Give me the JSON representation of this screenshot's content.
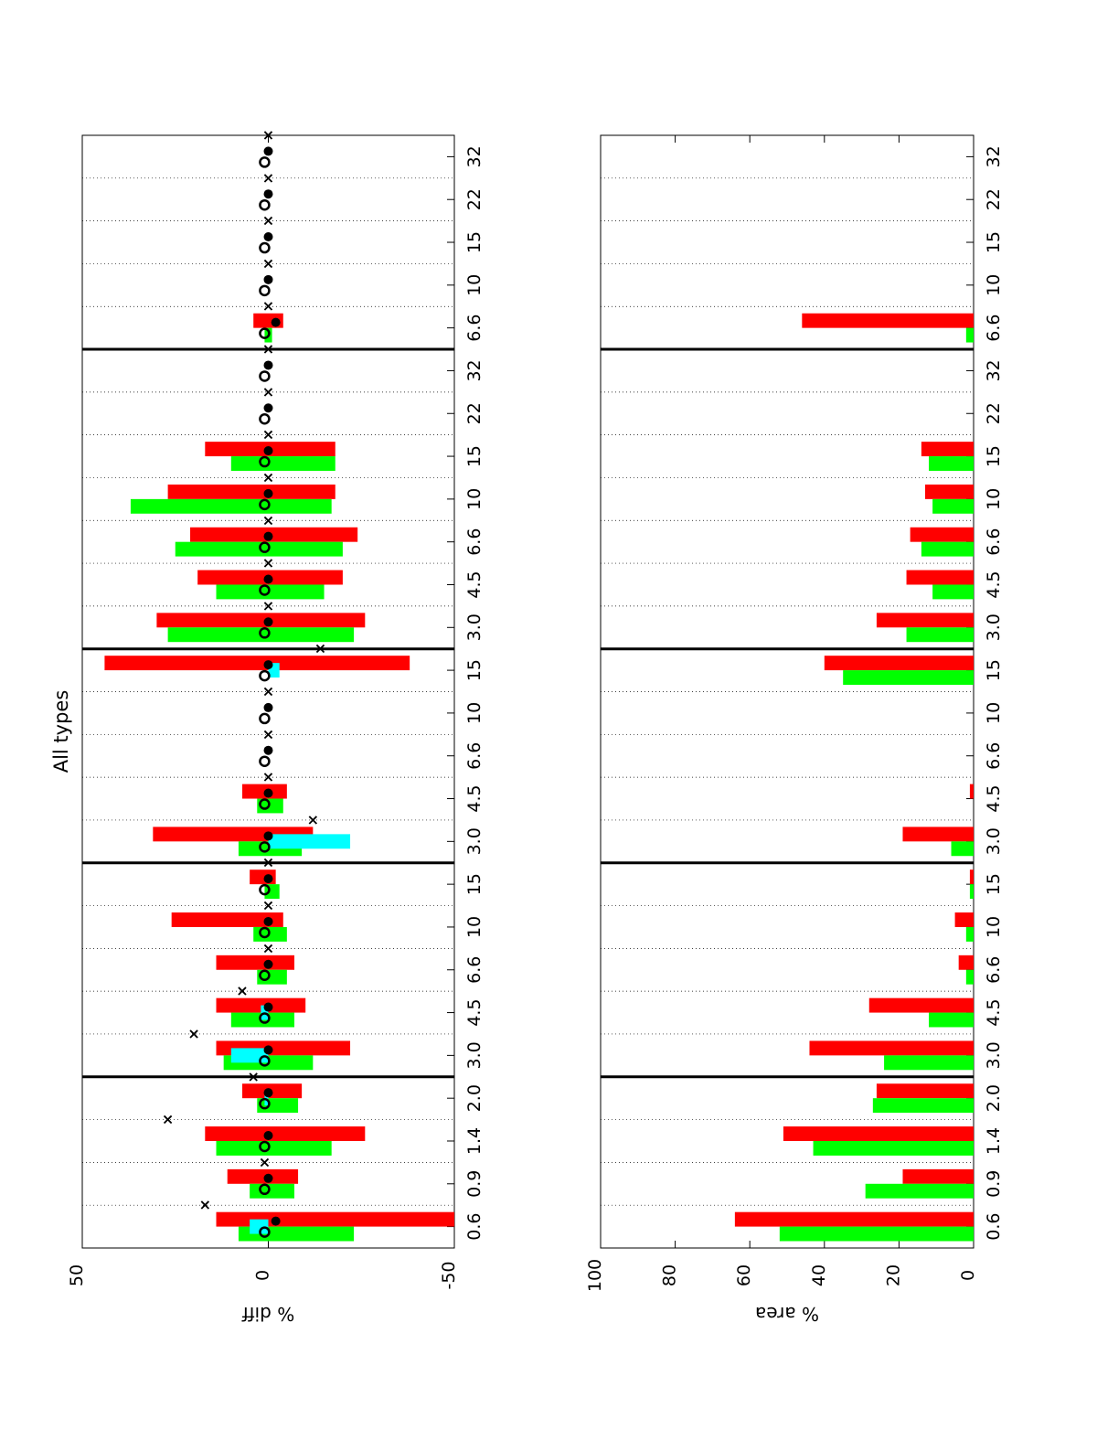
{
  "figure": {
    "title": "All types",
    "colors": {
      "red": "#ff0000",
      "green": "#00ff00",
      "cyan": "#00ffff",
      "marker": "#000000"
    }
  },
  "chart_data": [
    {
      "type": "bar",
      "panel": "top",
      "ylabel": "% diff",
      "ylim": [
        -50,
        50
      ],
      "yticks": [
        50,
        0,
        -50
      ],
      "groups": [
        {
          "bins": [
            "0.6",
            "0.9",
            "1.4",
            "2.0"
          ]
        },
        {
          "bins": [
            "3.0",
            "4.5",
            "6.6",
            "10",
            "15"
          ]
        },
        {
          "bins": [
            "3.0",
            "4.5",
            "6.6",
            "10",
            "15"
          ]
        },
        {
          "bins": [
            "3.0",
            "4.5",
            "6.6",
            "10",
            "15",
            "22",
            "32"
          ]
        },
        {
          "bins": [
            "6.6",
            "10",
            "15",
            "22",
            "32"
          ]
        }
      ],
      "series": [
        {
          "name": "",
          "color": "red",
          "values_low": [
            14,
            11,
            17,
            7,
            14,
            14,
            14,
            26,
            5,
            31,
            7,
            0,
            0,
            44,
            30,
            19,
            21,
            27,
            17,
            0,
            0,
            4,
            0,
            0,
            0,
            0
          ],
          "values_high": [
            -50,
            -8,
            -26,
            -9,
            -22,
            -10,
            -7,
            -4,
            -2,
            -12,
            -5,
            0,
            0,
            -38,
            -26,
            -20,
            -24,
            -18,
            -18,
            0,
            0,
            -4,
            0,
            0,
            0,
            0
          ]
        },
        {
          "name": "",
          "color": "green",
          "values_low": [
            8,
            5,
            14,
            3,
            12,
            10,
            3,
            4,
            1,
            8,
            3,
            0,
            0,
            -41,
            27,
            14,
            25,
            37,
            10,
            0,
            0,
            1,
            0,
            0,
            0,
            0
          ],
          "values_high": [
            -23,
            -7,
            -17,
            -8,
            -12,
            -7,
            -5,
            -5,
            -3,
            -9,
            -4,
            0,
            0,
            -41,
            -23,
            -15,
            -20,
            -17,
            -18,
            0,
            0,
            -1,
            0,
            0,
            0,
            0
          ]
        },
        {
          "name": "",
          "color": "cyan",
          "values": [
            5,
            0,
            0,
            1,
            10,
            2,
            0,
            0,
            0,
            -22,
            0,
            0,
            0,
            -3,
            0,
            0,
            0,
            0,
            0,
            0,
            0,
            0,
            0,
            0,
            0,
            0
          ]
        }
      ],
      "markers": [
        {
          "style": "x",
          "values": [
            17,
            1,
            27,
            4,
            20,
            7,
            0,
            0,
            0,
            -12,
            0,
            0,
            0,
            -14,
            0,
            0,
            0,
            0,
            0,
            0,
            0,
            0,
            0,
            0,
            0,
            0
          ]
        },
        {
          "style": "o",
          "values": [
            1,
            1,
            1,
            1,
            1,
            1,
            1,
            1,
            1,
            1,
            1,
            1,
            1,
            1,
            1,
            1,
            1,
            1,
            1,
            1,
            1,
            1,
            1,
            1,
            1,
            1
          ]
        },
        {
          "style": "dot",
          "values": [
            -2,
            0,
            0,
            0,
            0,
            0,
            0,
            0,
            0,
            0,
            0,
            0,
            0,
            0,
            0,
            0,
            0,
            0,
            0,
            0,
            0,
            -2,
            0,
            0,
            0,
            0
          ]
        }
      ]
    },
    {
      "type": "bar",
      "panel": "bottom",
      "ylabel": "% area",
      "ylim": [
        0,
        100
      ],
      "yticks": [
        100,
        80,
        60,
        40,
        20,
        0
      ],
      "groups": [
        {
          "bins": [
            "0.6",
            "0.9",
            "1.4",
            "2.0"
          ]
        },
        {
          "bins": [
            "3.0",
            "4.5",
            "6.6",
            "10",
            "15"
          ]
        },
        {
          "bins": [
            "3.0",
            "4.5",
            "6.6",
            "10",
            "15"
          ]
        },
        {
          "bins": [
            "3.0",
            "4.5",
            "6.6",
            "10",
            "15",
            "22",
            "32"
          ]
        },
        {
          "bins": [
            "6.6",
            "10",
            "15",
            "22",
            "32"
          ]
        }
      ],
      "series": [
        {
          "name": "",
          "color": "red",
          "values": [
            64,
            19,
            51,
            26,
            44,
            28,
            4,
            5,
            1,
            19,
            1,
            0,
            0,
            40,
            26,
            18,
            17,
            13,
            14,
            0,
            0,
            46,
            0,
            0,
            0,
            0
          ]
        },
        {
          "name": "",
          "color": "green",
          "values": [
            52,
            29,
            43,
            27,
            24,
            12,
            2,
            2,
            1,
            6,
            0,
            0,
            0,
            35,
            18,
            11,
            14,
            11,
            12,
            0,
            0,
            2,
            0,
            0,
            0,
            0
          ]
        }
      ]
    }
  ]
}
